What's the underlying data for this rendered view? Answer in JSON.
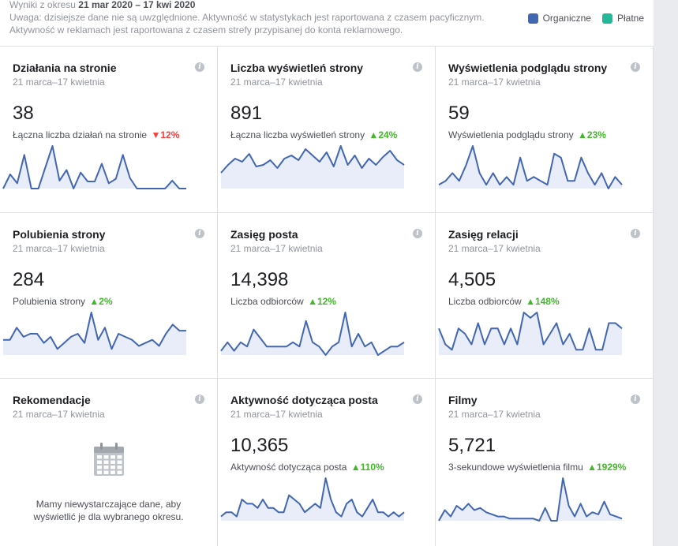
{
  "header": {
    "line1_prefix": "Wyniki z okresu",
    "line1_range": "21 mar 2020 – 17 kwi 2020",
    "line2": "Uwaga: dzisiejsze dane nie są uwzględnione. Aktywność w statystykach jest raportowana z czasem pacyficznym.",
    "line3": "Aktywność w reklamach jest raportowana z czasem strefy przypisanej do konta reklamowego."
  },
  "legend": [
    {
      "label": "Organiczne",
      "color": "#4267b2"
    },
    {
      "label": "Płatne",
      "color": "#23b89a"
    }
  ],
  "colors": {
    "line": "#4267b2",
    "fill": "#e9ecf9",
    "up": "#42b72a",
    "down": "#fa3e3e"
  },
  "cards": [
    {
      "title": "Działania na stronie",
      "range": "21 marca–17 kwietnia",
      "value": "38",
      "desc": "Łączna liczba działań na stronie",
      "change": "12%",
      "direction": "down",
      "series": [
        0,
        16,
        6,
        38,
        0,
        0,
        24,
        48,
        9,
        21,
        0,
        18,
        8,
        8,
        28,
        6,
        11,
        38,
        12,
        0,
        0,
        0,
        0,
        0,
        9,
        0,
        0
      ]
    },
    {
      "title": "Liczba wyświetleń strony",
      "range": "21 marca–17 kwietnia",
      "value": "891",
      "desc": "Łączna liczba wyświetleń strony",
      "change": "24%",
      "direction": "up",
      "series": [
        20,
        30,
        38,
        34,
        44,
        28,
        30,
        36,
        26,
        38,
        42,
        36,
        50,
        42,
        34,
        46,
        28,
        54,
        30,
        42,
        26,
        38,
        30,
        40,
        48,
        36,
        30
      ]
    },
    {
      "title": "Wyświetlenia podglądu strony",
      "range": "21 marca–17 kwietnia",
      "value": "59",
      "desc": "Wyświetlenia podglądu strony",
      "change": "23%",
      "direction": "up",
      "series": [
        1,
        2,
        4,
        2,
        6,
        11,
        4,
        1,
        4,
        1,
        3,
        1,
        8,
        2,
        3,
        2,
        1,
        9,
        8,
        2,
        2,
        8,
        4,
        1,
        4,
        0,
        3,
        1
      ]
    },
    {
      "title": "Polubienia strony",
      "range": "21 marca–17 kwietnia",
      "value": "284",
      "desc": "Polubienia strony",
      "change": "2%",
      "direction": "up",
      "series": [
        10,
        10,
        18,
        12,
        14,
        14,
        8,
        12,
        4,
        8,
        12,
        14,
        8,
        28,
        10,
        18,
        4,
        14,
        12,
        10,
        6,
        8,
        10,
        6,
        14,
        20,
        16,
        16
      ]
    },
    {
      "title": "Zasięg posta",
      "range": "21 marca–17 kwietnia",
      "value": "14,398",
      "desc": "Liczba odbiorców",
      "change": "12%",
      "direction": "up",
      "series": [
        2,
        6,
        2,
        6,
        4,
        12,
        8,
        4,
        4,
        4,
        4,
        6,
        4,
        16,
        6,
        4,
        0,
        4,
        6,
        20,
        4,
        10,
        4,
        6,
        0,
        2,
        4,
        4,
        6
      ]
    },
    {
      "title": "Zasięg relacji",
      "range": "21 marca–17 kwietnia",
      "value": "4,505",
      "desc": "Liczba odbiorców",
      "change": "148%",
      "direction": "up",
      "series": [
        10,
        4,
        2,
        10,
        8,
        4,
        12,
        4,
        10,
        10,
        4,
        10,
        4,
        16,
        14,
        16,
        4,
        8,
        12,
        4,
        8,
        2,
        2,
        10,
        2,
        2,
        12,
        12,
        10
      ]
    },
    {
      "title": "Rekomendacje",
      "range": "21 marca–17 kwietnia",
      "empty": true,
      "message": "Mamy niewystarczające dane, aby wyświetlić je dla wybranego okresu."
    },
    {
      "title": "Aktywność dotycząca posta",
      "range": "21 marca–17 kwietnia",
      "value": "10,365",
      "desc": "Aktywność dotycząca posta",
      "change": "110%",
      "direction": "up",
      "series": [
        2,
        4,
        4,
        2,
        10,
        8,
        8,
        6,
        10,
        6,
        6,
        4,
        4,
        12,
        10,
        8,
        4,
        6,
        8,
        6,
        20,
        10,
        4,
        2,
        8,
        10,
        4,
        2,
        6,
        10,
        4,
        4,
        2,
        4,
        2,
        4
      ]
    },
    {
      "title": "Filmy",
      "range": "21 marca–17 kwietnia",
      "value": "5,721",
      "desc": "3-sekundowe wyświetlenia filmu",
      "change": "1929%",
      "direction": "up",
      "series": [
        0,
        10,
        4,
        14,
        10,
        16,
        10,
        12,
        8,
        6,
        4,
        4,
        2,
        2,
        2,
        2,
        2,
        0,
        12,
        0,
        0,
        40,
        14,
        4,
        16,
        4,
        8,
        6,
        18,
        6,
        4,
        2
      ]
    }
  ]
}
